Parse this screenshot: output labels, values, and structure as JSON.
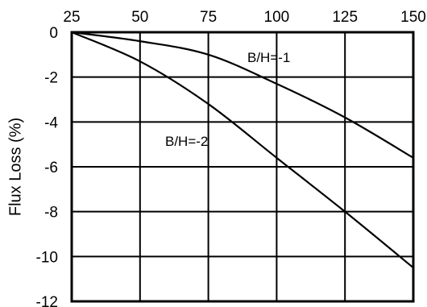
{
  "chart_data": {
    "type": "line",
    "title": "",
    "xlabel": "",
    "ylabel": "Flux Loss (%)",
    "x_axis_position": "top",
    "xlim": [
      25,
      150
    ],
    "ylim": [
      -12,
      0
    ],
    "x_ticks": [
      25,
      50,
      75,
      100,
      125,
      150
    ],
    "y_ticks": [
      0,
      -2,
      -4,
      -6,
      -8,
      -10,
      -12
    ],
    "x_tick_labels": [
      "25",
      "50",
      "75",
      "100",
      "125",
      "150"
    ],
    "y_tick_labels": [
      "0",
      "-2",
      "-4",
      "-6",
      "-8",
      "-10",
      "-12"
    ],
    "grid": true,
    "legend": "none",
    "series": [
      {
        "name": "B/H=-1",
        "x": [
          25,
          50,
          75,
          100,
          125,
          150
        ],
        "y": [
          0,
          -0.4,
          -1.0,
          -2.3,
          -3.8,
          -5.6
        ]
      },
      {
        "name": "B/H=-2",
        "x": [
          25,
          50,
          75,
          100,
          125,
          150
        ],
        "y": [
          0,
          -1.3,
          -3.2,
          -5.6,
          -8.0,
          -10.5
        ]
      }
    ],
    "curve_labels": [
      "B/H=-1",
      "B/H=-2"
    ],
    "colors": {
      "line": "#000000",
      "grid": "#000000",
      "background": "#ffffff"
    }
  }
}
